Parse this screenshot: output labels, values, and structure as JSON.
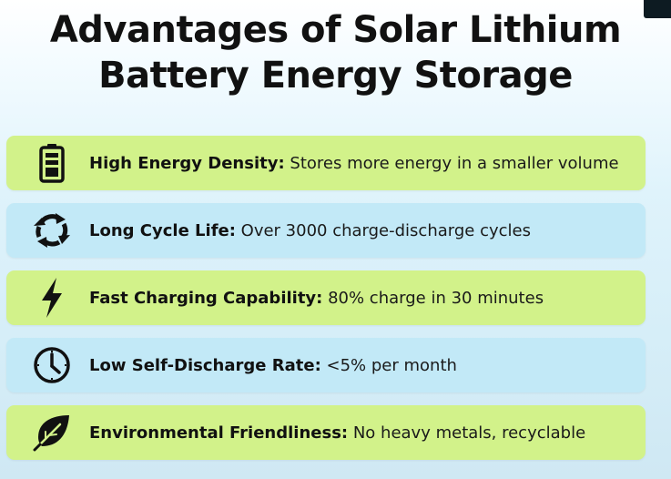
{
  "title": {
    "line1": "Advantages of Solar Lithium",
    "line2": "Battery Energy Storage"
  },
  "colors": {
    "green_card": "#d2f28a",
    "blue_card": "#c2e9f7",
    "text": "#111111"
  },
  "items": [
    {
      "icon": "battery-icon",
      "label": "High Energy Density:",
      "desc": " Stores more energy in a smaller volume"
    },
    {
      "icon": "cycle-arrows-icon",
      "label": "Long Cycle Life:",
      "desc": " Over 3000 charge-discharge cycles"
    },
    {
      "icon": "lightning-bolt-icon",
      "label": "Fast Charging Capability:",
      "desc": " 80% charge in 30 minutes"
    },
    {
      "icon": "clock-icon",
      "label": "Low Self-Discharge Rate:",
      "desc": " <5% per month"
    },
    {
      "icon": "leaf-icon",
      "label": "Environmental Friendliness:",
      "desc": " No heavy metals, recyclable"
    }
  ]
}
